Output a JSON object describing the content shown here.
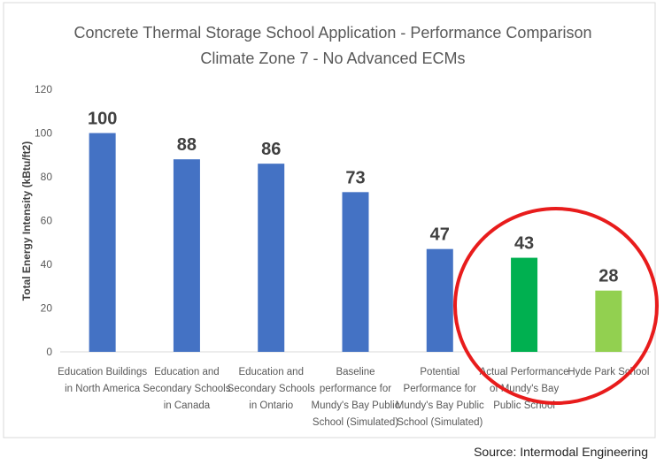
{
  "chart_data": {
    "type": "bar",
    "title": "Concrete Thermal Storage School Application - Performance Comparison",
    "subtitle": "Climate Zone 7 - No Advanced ECMs",
    "ylabel": "Total Energy Intensity (kBtu/ft2)",
    "xlabel": "",
    "ylim": [
      0,
      120
    ],
    "yticks": [
      0,
      20,
      40,
      60,
      80,
      100,
      120
    ],
    "grid": false,
    "categories": [
      [
        "Education Buildings",
        "in North America"
      ],
      [
        "Education and",
        "Secondary Schools",
        "in Canada"
      ],
      [
        "Education and",
        "Secondary Schools",
        "in Ontario"
      ],
      [
        "Baseline",
        "performance for",
        "Mundy's Bay Public",
        "School (Simulated)"
      ],
      [
        "Potential",
        "Performance for",
        "Mundy's Bay Public",
        "School (Simulated)"
      ],
      [
        "Actual Performance",
        "of Mundy's Bay",
        "Public School"
      ],
      [
        "Hyde Park School"
      ]
    ],
    "values": [
      100,
      88,
      86,
      73,
      47,
      43,
      28
    ],
    "data_labels": [
      "100",
      "88",
      "86",
      "73",
      "47",
      "43",
      "28"
    ],
    "colors": [
      "#4472C4",
      "#4472C4",
      "#4472C4",
      "#4472C4",
      "#4472C4",
      "#00B050",
      "#92D050"
    ],
    "annotation": "red circle highlighting last two bars"
  },
  "source": "Source: Intermodal Engineering"
}
